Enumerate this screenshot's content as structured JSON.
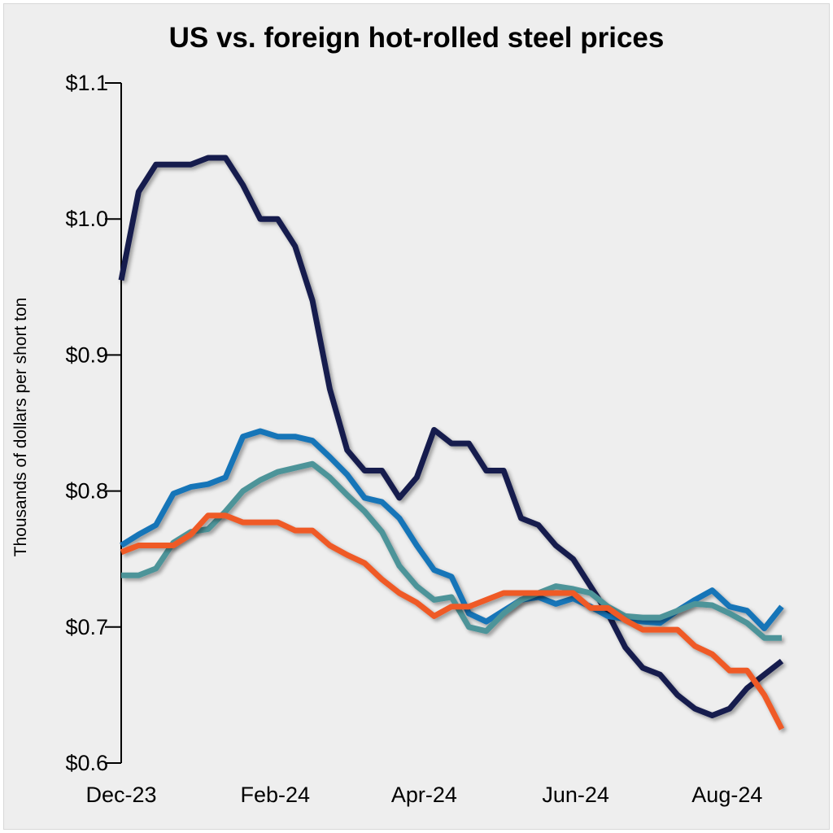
{
  "chart_data": {
    "type": "line",
    "title": "US vs. foreign hot-rolled steel prices",
    "xlabel": "",
    "ylabel": "Thousands of dollars per short ton",
    "ylim": [
      0.6,
      1.1
    ],
    "yticks": [
      0.6,
      0.7,
      0.8,
      0.9,
      1.0,
      1.1
    ],
    "ytick_labels": [
      "$0.6",
      "$0.7",
      "$0.8",
      "$0.9",
      "$1.0",
      "$1.1"
    ],
    "xticks": [
      "2023-12-01",
      "2024-02-01",
      "2024-04-01",
      "2024-06-01",
      "2024-08-01"
    ],
    "xtick_labels": [
      "Dec-23",
      "Feb-24",
      "Apr-24",
      "Jun-24",
      "Aug-24"
    ],
    "xlim": [
      "2023-12-01",
      "2024-08-23"
    ],
    "grid": false,
    "legend": "none",
    "x": [
      "2023-12-01",
      "2023-12-08",
      "2023-12-15",
      "2023-12-22",
      "2023-12-29",
      "2024-01-05",
      "2024-01-12",
      "2024-01-19",
      "2024-01-26",
      "2024-02-02",
      "2024-02-09",
      "2024-02-16",
      "2024-02-23",
      "2024-03-01",
      "2024-03-08",
      "2024-03-15",
      "2024-03-22",
      "2024-03-29",
      "2024-04-05",
      "2024-04-12",
      "2024-04-19",
      "2024-04-26",
      "2024-05-03",
      "2024-05-10",
      "2024-05-17",
      "2024-05-24",
      "2024-05-31",
      "2024-06-07",
      "2024-06-14",
      "2024-06-21",
      "2024-06-28",
      "2024-07-05",
      "2024-07-12",
      "2024-07-19",
      "2024-07-26",
      "2024-08-02",
      "2024-08-09",
      "2024-08-16",
      "2024-08-23"
    ],
    "series": [
      {
        "color": "#141b4d",
        "values": [
          0.955,
          1.02,
          1.04,
          1.04,
          1.04,
          1.045,
          1.045,
          1.025,
          1.0,
          1.0,
          0.98,
          0.94,
          0.875,
          0.83,
          0.815,
          0.815,
          0.795,
          0.81,
          0.845,
          0.835,
          0.835,
          0.815,
          0.815,
          0.78,
          0.775,
          0.76,
          0.75,
          0.73,
          0.71,
          0.685,
          0.67,
          0.665,
          0.65,
          0.64,
          0.635,
          0.64,
          0.655,
          0.665,
          0.675
        ]
      },
      {
        "color": "#1574b8",
        "values": [
          0.76,
          0.768,
          0.775,
          0.798,
          0.803,
          0.805,
          0.81,
          0.84,
          0.844,
          0.84,
          0.84,
          0.837,
          0.825,
          0.812,
          0.795,
          0.792,
          0.78,
          0.76,
          0.742,
          0.737,
          0.71,
          0.704,
          0.712,
          0.72,
          0.722,
          0.717,
          0.721,
          0.715,
          0.708,
          0.706,
          0.704,
          0.703,
          0.712,
          0.72,
          0.727,
          0.715,
          0.712,
          0.699,
          0.715
        ]
      },
      {
        "color": "#4e9499",
        "values": [
          0.738,
          0.738,
          0.743,
          0.762,
          0.77,
          0.772,
          0.785,
          0.8,
          0.808,
          0.814,
          0.817,
          0.82,
          0.81,
          0.797,
          0.785,
          0.77,
          0.745,
          0.73,
          0.72,
          0.722,
          0.7,
          0.697,
          0.71,
          0.72,
          0.725,
          0.73,
          0.728,
          0.725,
          0.715,
          0.708,
          0.707,
          0.707,
          0.712,
          0.717,
          0.716,
          0.71,
          0.703,
          0.692,
          0.692
        ]
      },
      {
        "color": "#ef5a28",
        "values": [
          0.755,
          0.76,
          0.76,
          0.76,
          0.768,
          0.782,
          0.782,
          0.777,
          0.777,
          0.777,
          0.771,
          0.771,
          0.76,
          0.753,
          0.747,
          0.735,
          0.725,
          0.718,
          0.708,
          0.715,
          0.715,
          0.72,
          0.725,
          0.725,
          0.725,
          0.725,
          0.725,
          0.714,
          0.714,
          0.705,
          0.698,
          0.698,
          0.698,
          0.686,
          0.68,
          0.668,
          0.668,
          0.65,
          0.625
        ]
      }
    ]
  }
}
